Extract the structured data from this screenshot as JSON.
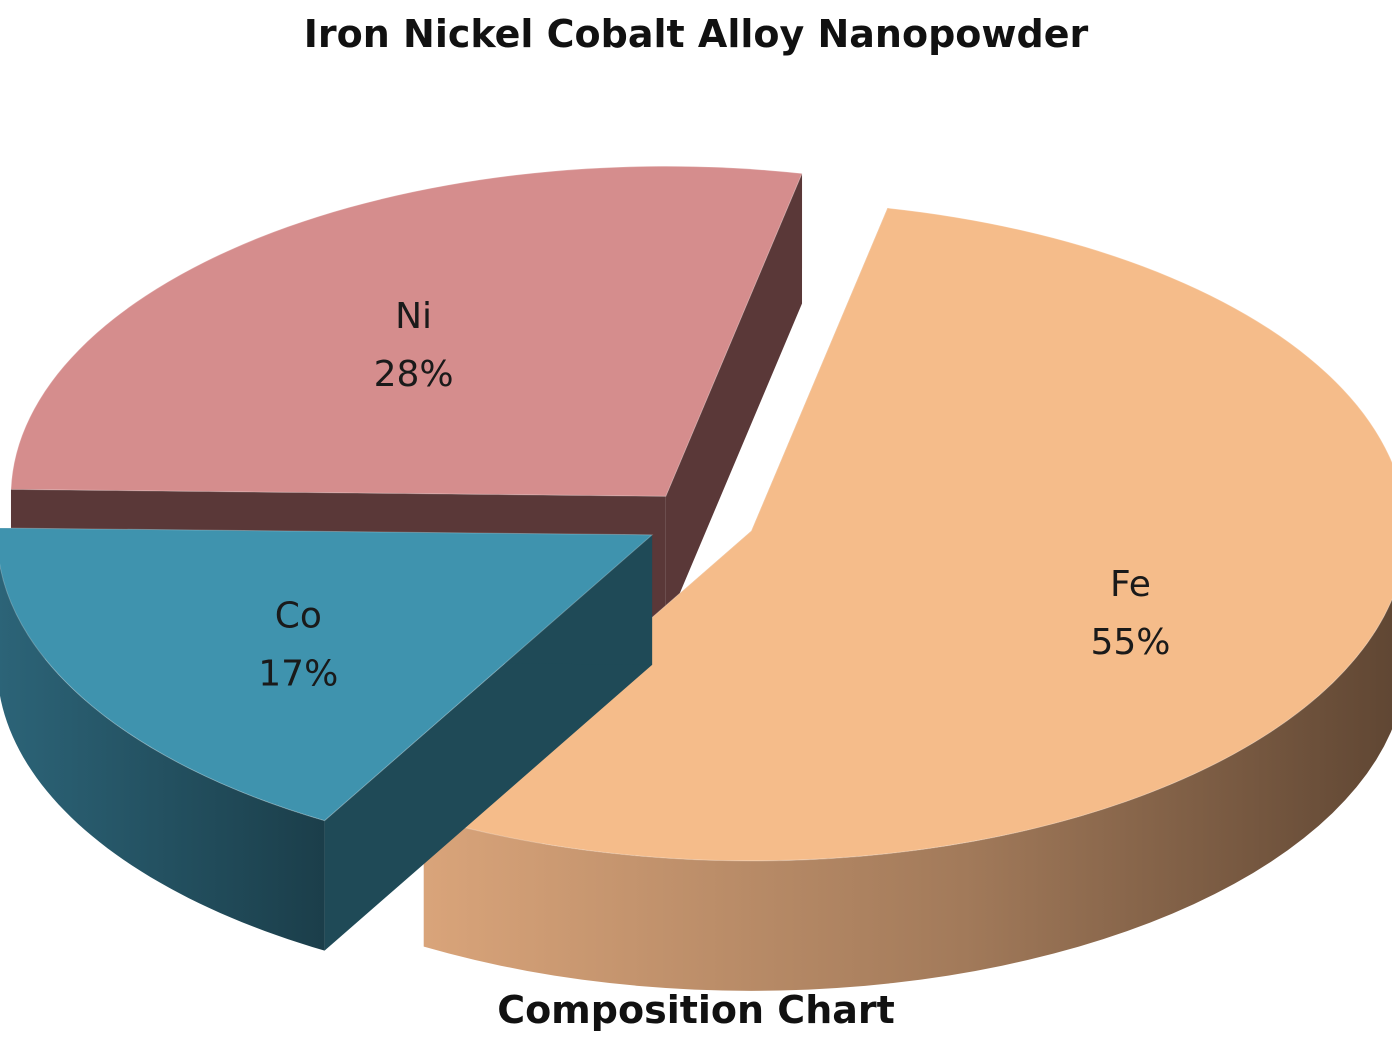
{
  "chart_data": {
    "type": "pie",
    "title": "Iron Nickel Cobalt Alloy Nanopowder",
    "caption": "Composition Chart",
    "three_d": true,
    "exploded": true,
    "slices": [
      {
        "name": "Fe",
        "value": 55,
        "label": "55%",
        "color": "#F5BC8A",
        "side_color": "#B98A62"
      },
      {
        "name": "Co",
        "value": 17,
        "label": "17%",
        "color": "#3F93AE",
        "side_color": "#1F4A57"
      },
      {
        "name": "Ni",
        "value": 28,
        "label": "28%",
        "color": "#D58D8D",
        "side_color": "#5A3838"
      }
    ]
  }
}
